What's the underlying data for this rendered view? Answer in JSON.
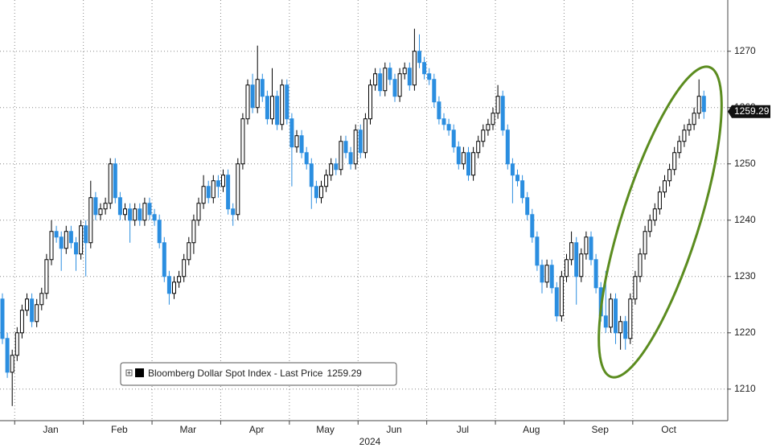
{
  "chart_data": {
    "type": "candlestick",
    "x_axis_label": "2024",
    "legend_label": "Bloomberg Dollar Spot Index - Last Price",
    "last_price": 1259.29,
    "up_color": "#000000",
    "down_color": "#2b8ee0",
    "ylim": [
      1204.4,
      1279.1
    ],
    "yticks": [
      1210,
      1220,
      1230,
      1240,
      1250,
      1260,
      1270
    ],
    "grid": true,
    "categories": [
      null,
      null,
      null,
      null,
      null,
      null,
      null,
      null,
      null,
      null,
      "Jan",
      null,
      null,
      null,
      null,
      null,
      null,
      null,
      null,
      null,
      null,
      null,
      null,
      null,
      "Feb",
      null,
      null,
      null,
      null,
      null,
      null,
      null,
      null,
      null,
      null,
      null,
      null,
      null,
      "Mar",
      null,
      null,
      null,
      null,
      null,
      null,
      null,
      null,
      null,
      null,
      null,
      null,
      null,
      "Apr",
      null,
      null,
      null,
      null,
      null,
      null,
      null,
      null,
      null,
      null,
      null,
      null,
      null,
      "May",
      null,
      null,
      null,
      null,
      null,
      null,
      null,
      null,
      null,
      null,
      null,
      null,
      null,
      "Jun",
      null,
      null,
      null,
      null,
      null,
      null,
      null,
      null,
      null,
      null,
      null,
      null,
      null,
      "Jul",
      null,
      null,
      null,
      null,
      null,
      null,
      null,
      null,
      null,
      null,
      null,
      null,
      null,
      "Aug",
      null,
      null,
      null,
      null,
      null,
      null,
      null,
      null,
      null,
      null,
      null,
      null,
      null,
      "Sep",
      null,
      null,
      null,
      null,
      null,
      null,
      null,
      null,
      null,
      null,
      null,
      null,
      null,
      "Oct",
      null,
      null,
      null,
      null,
      null,
      null,
      null
    ],
    "open": [
      1226,
      1219,
      1213,
      1216,
      1220,
      1224,
      1226,
      1222,
      1225,
      1227,
      1233,
      1238,
      1237,
      1235,
      1238,
      1236,
      1234,
      1239,
      1236,
      1244,
      1241,
      1242,
      1243,
      1250,
      1244,
      1241,
      1242,
      1240,
      1242,
      1240,
      1243,
      1241,
      1240,
      1236,
      1230,
      1227,
      1229,
      1230,
      1233,
      1236,
      1240,
      1243,
      1246,
      1244,
      1247,
      1246,
      1248,
      1242,
      1241,
      1250,
      1258,
      1264,
      1260,
      1265,
      1262,
      1258,
      1262,
      1257,
      1264,
      1258,
      1253,
      1255,
      1252,
      1250,
      1246,
      1244,
      1246,
      1248,
      1250,
      1249,
      1254,
      1252,
      1250,
      1256,
      1252,
      1258,
      1264,
      1266,
      1263,
      1267,
      1265,
      1262,
      1266,
      1267,
      1264,
      1270,
      1268,
      1266,
      1265,
      1261,
      1258,
      1257,
      1256,
      1253,
      1250,
      1252,
      1248,
      1252,
      1254,
      1256,
      1257,
      1259,
      1262,
      1256,
      1250,
      1248,
      1247,
      1244,
      1241,
      1237,
      1232,
      1229,
      1232,
      1228,
      1223,
      1230,
      1233,
      1236,
      1230,
      1234,
      1237,
      1233,
      1228,
      1223,
      1221,
      1226,
      1220,
      1222,
      1219,
      1226,
      1230,
      1234,
      1238,
      1240,
      1242,
      1245,
      1247,
      1249,
      1252,
      1254,
      1256,
      1257,
      1259,
      1262
    ],
    "high": [
      1227,
      1220,
      1217,
      1221,
      1225,
      1227,
      1227,
      1226,
      1228,
      1234,
      1240,
      1239,
      1238,
      1239,
      1239,
      1237,
      1240,
      1240,
      1247,
      1245,
      1243,
      1244,
      1251,
      1251,
      1245,
      1243,
      1243,
      1243,
      1243,
      1244,
      1244,
      1242,
      1241,
      1237,
      1231,
      1230,
      1231,
      1234,
      1237,
      1241,
      1244,
      1248,
      1247,
      1248,
      1248,
      1249,
      1249,
      1243,
      1251,
      1259,
      1265,
      1266,
      1271,
      1266,
      1263,
      1267,
      1263,
      1265,
      1265,
      1259,
      1256,
      1256,
      1253,
      1251,
      1247,
      1247,
      1249,
      1251,
      1251,
      1255,
      1255,
      1253,
      1257,
      1257,
      1259,
      1265,
      1267,
      1267,
      1268,
      1268,
      1266,
      1267,
      1268,
      1268,
      1274,
      1273,
      1269,
      1267,
      1266,
      1262,
      1259,
      1258,
      1257,
      1254,
      1253,
      1253,
      1253,
      1255,
      1257,
      1258,
      1260,
      1264,
      1263,
      1257,
      1251,
      1249,
      1248,
      1245,
      1242,
      1238,
      1233,
      1233,
      1233,
      1229,
      1231,
      1234,
      1238,
      1237,
      1235,
      1238,
      1238,
      1234,
      1229,
      1231,
      1227,
      1227,
      1223,
      1223,
      1227,
      1231,
      1235,
      1239,
      1241,
      1243,
      1246,
      1248,
      1250,
      1253,
      1255,
      1257,
      1258,
      1260,
      1265,
      1263
    ],
    "low": [
      1218,
      1212,
      1207,
      1215,
      1219,
      1223,
      1221,
      1221,
      1224,
      1226,
      1232,
      1236,
      1231,
      1234,
      1235,
      1231,
      1233,
      1230,
      1235,
      1240,
      1240,
      1241,
      1242,
      1243,
      1240,
      1240,
      1236,
      1239,
      1239,
      1239,
      1240,
      1239,
      1235,
      1229,
      1225,
      1226,
      1228,
      1229,
      1232,
      1234,
      1239,
      1242,
      1243,
      1243,
      1244,
      1245,
      1241,
      1239,
      1240,
      1249,
      1257,
      1259,
      1259,
      1261,
      1257,
      1257,
      1256,
      1256,
      1257,
      1246,
      1252,
      1251,
      1249,
      1242,
      1243,
      1243,
      1245,
      1247,
      1248,
      1248,
      1251,
      1249,
      1249,
      1251,
      1251,
      1257,
      1263,
      1262,
      1262,
      1264,
      1261,
      1261,
      1265,
      1263,
      1263,
      1267,
      1265,
      1264,
      1260,
      1257,
      1256,
      1255,
      1252,
      1249,
      1249,
      1247,
      1247,
      1251,
      1253,
      1255,
      1256,
      1258,
      1255,
      1249,
      1243,
      1246,
      1243,
      1240,
      1236,
      1231,
      1227,
      1228,
      1227,
      1222,
      1222,
      1229,
      1232,
      1225,
      1229,
      1233,
      1232,
      1227,
      1222,
      1220,
      1220,
      1218,
      1217,
      1217,
      1218,
      1225,
      1229,
      1233,
      1237,
      1239,
      1241,
      1244,
      1246,
      1248,
      1251,
      1253,
      1255,
      1256,
      1258,
      1258
    ],
    "close": [
      1219,
      1213,
      1216,
      1220,
      1224,
      1226,
      1222,
      1225,
      1227,
      1233,
      1238,
      1237,
      1235,
      1238,
      1236,
      1234,
      1239,
      1236,
      1244,
      1241,
      1242,
      1243,
      1250,
      1244,
      1241,
      1242,
      1240,
      1242,
      1240,
      1243,
      1241,
      1240,
      1236,
      1230,
      1227,
      1229,
      1230,
      1233,
      1236,
      1240,
      1243,
      1246,
      1244,
      1247,
      1246,
      1248,
      1242,
      1241,
      1250,
      1258,
      1264,
      1260,
      1265,
      1262,
      1258,
      1262,
      1257,
      1264,
      1258,
      1253,
      1255,
      1252,
      1250,
      1246,
      1244,
      1246,
      1248,
      1250,
      1249,
      1254,
      1252,
      1250,
      1256,
      1252,
      1258,
      1264,
      1266,
      1263,
      1267,
      1265,
      1262,
      1266,
      1267,
      1264,
      1270,
      1268,
      1266,
      1265,
      1261,
      1258,
      1257,
      1256,
      1253,
      1250,
      1252,
      1248,
      1252,
      1254,
      1256,
      1257,
      1259,
      1262,
      1256,
      1250,
      1248,
      1247,
      1244,
      1241,
      1237,
      1232,
      1229,
      1232,
      1228,
      1223,
      1230,
      1233,
      1236,
      1230,
      1234,
      1237,
      1233,
      1228,
      1223,
      1221,
      1226,
      1220,
      1222,
      1219,
      1226,
      1230,
      1234,
      1238,
      1240,
      1242,
      1245,
      1247,
      1249,
      1252,
      1254,
      1256,
      1257,
      1259,
      1262,
      1259.29
    ]
  }
}
